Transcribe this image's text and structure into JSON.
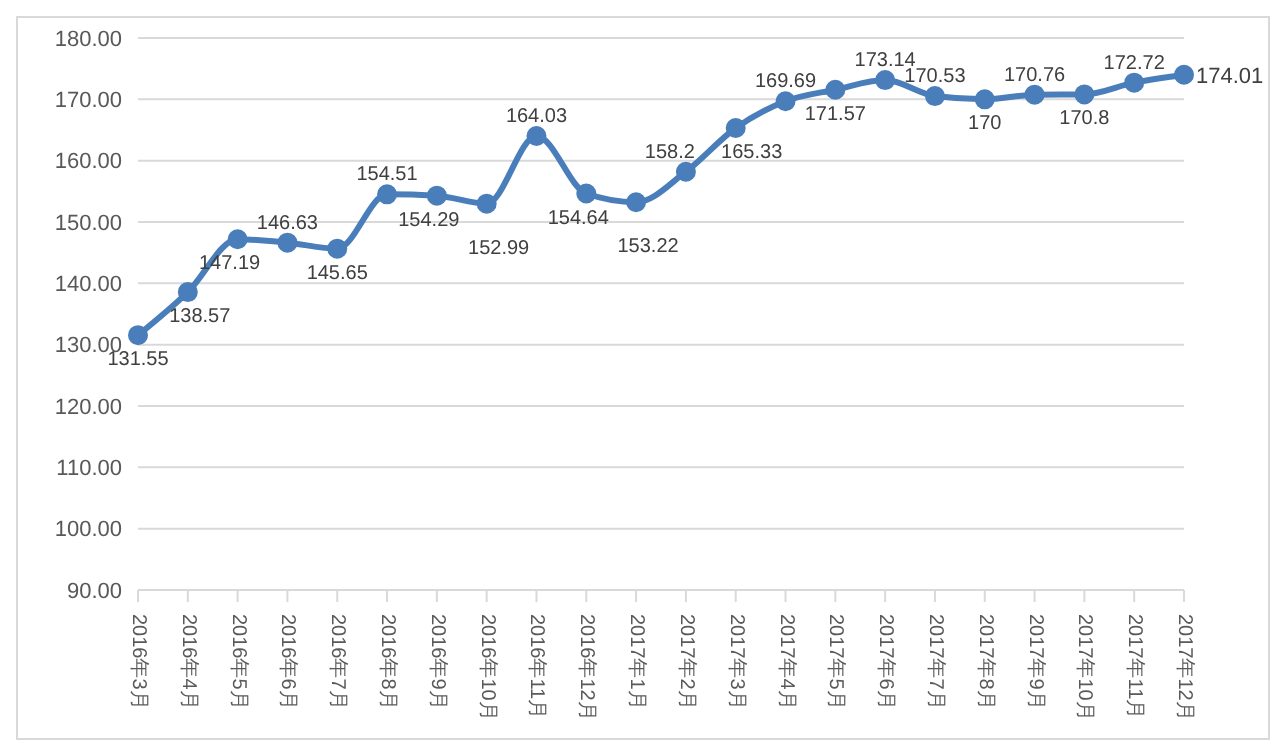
{
  "chart_data": {
    "type": "line",
    "categories": [
      "2016年3月",
      "2016年4月",
      "2016年5月",
      "2016年6月",
      "2016年7月",
      "2016年8月",
      "2016年9月",
      "2016年10月",
      "2016年11月",
      "2016年12月",
      "2017年1月",
      "2017年2月",
      "2017年3月",
      "2017年4月",
      "2017年5月",
      "2017年6月",
      "2017年7月",
      "2017年8月",
      "2017年9月",
      "2017年10月",
      "2017年11月",
      "2017年12月"
    ],
    "series": [
      {
        "color": "#4a7ebb",
        "values": [
          131.55,
          138.57,
          147.19,
          146.63,
          145.65,
          154.51,
          154.29,
          152.99,
          164.03,
          154.64,
          153.22,
          158.2,
          165.33,
          169.69,
          171.57,
          173.14,
          170.53,
          170,
          170.76,
          170.8,
          172.72,
          174.01
        ]
      }
    ],
    "ylim": [
      90,
      180
    ],
    "yticks": [
      {
        "value": 90,
        "label": "90.00"
      },
      {
        "value": 100,
        "label": "100.00"
      },
      {
        "value": 110,
        "label": "110.00"
      },
      {
        "value": 120,
        "label": "120.00"
      },
      {
        "value": 130,
        "label": "130.00"
      },
      {
        "value": 140,
        "label": "140.00"
      },
      {
        "value": 150,
        "label": "150.00"
      },
      {
        "value": 160,
        "label": "160.00"
      },
      {
        "value": 170,
        "label": "170.00"
      },
      {
        "value": 180,
        "label": "180.00"
      }
    ],
    "grid": "y",
    "marker": "circle",
    "line_style": "solid",
    "data_labels": true
  }
}
